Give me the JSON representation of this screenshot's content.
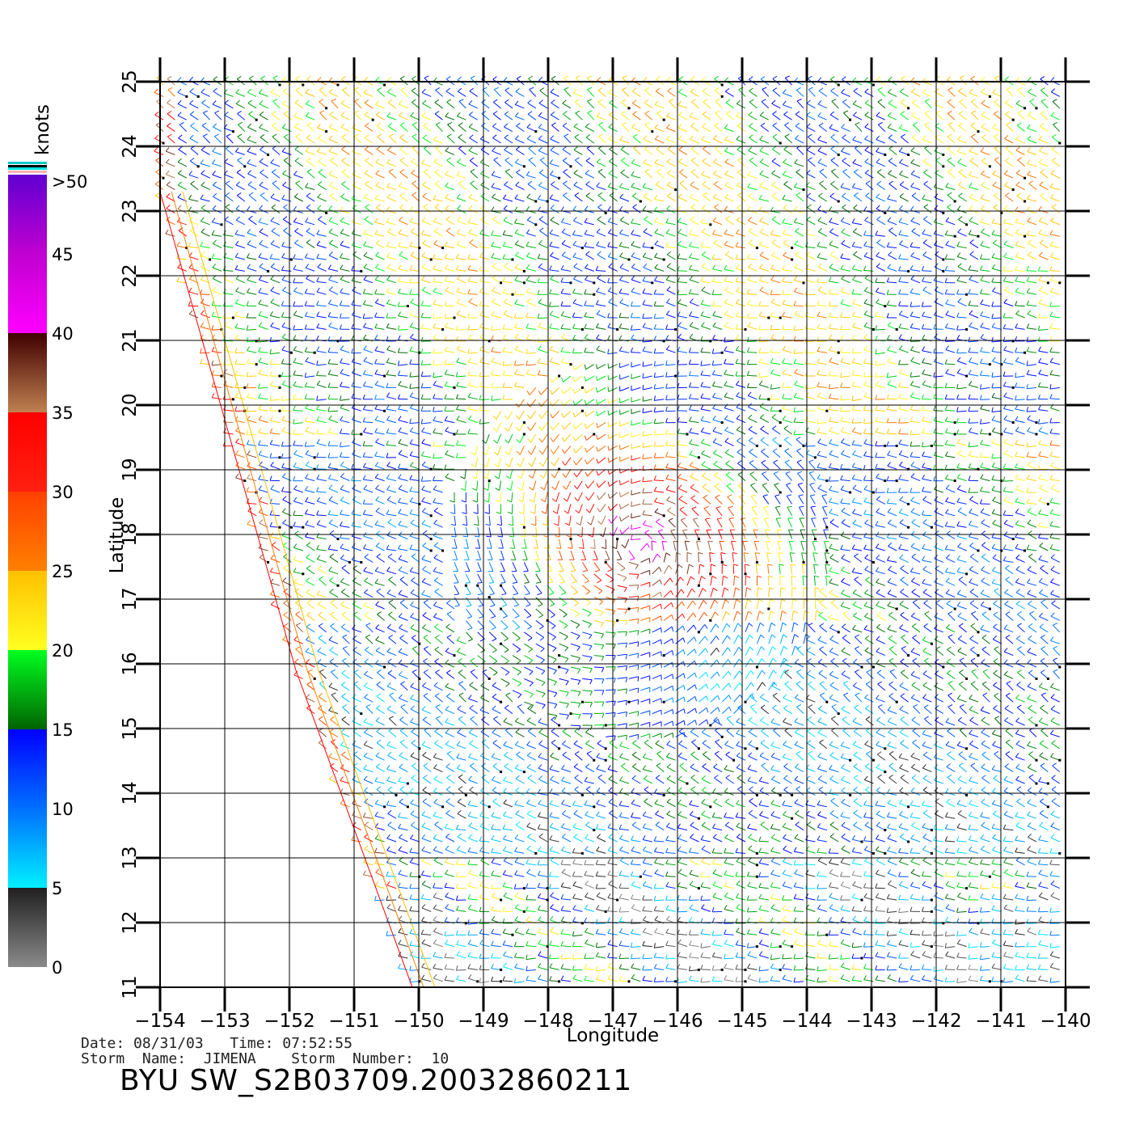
{
  "chart_data": {
    "type": "wind-vector-map",
    "xlabel": "Longitude",
    "ylabel": "Latitude",
    "xlim": [
      -154,
      -140
    ],
    "ylim": [
      11,
      25
    ],
    "x_ticks": [
      "−154",
      "−153",
      "−152",
      "−151",
      "−150",
      "−149",
      "−148",
      "−147",
      "−146",
      "−145",
      "−144",
      "−143",
      "−142",
      "−141",
      "−140"
    ],
    "y_ticks": [
      "11",
      "12",
      "13",
      "14",
      "15",
      "16",
      "17",
      "18",
      "19",
      "20",
      "21",
      "22",
      "23",
      "24",
      "25"
    ],
    "grid": true,
    "swath_west_edge": [
      [
        -154,
        23.3
      ],
      [
        -151.9,
        15.9
      ],
      [
        -150.1,
        11
      ]
    ],
    "storm_center": {
      "lon": -146.6,
      "lat": 17.8
    },
    "colorbar": {
      "unit": "knots",
      "ticks": [
        "0",
        "5",
        "10",
        "15",
        "20",
        "25",
        "30",
        "35",
        "40",
        "45",
        ">50"
      ],
      "stops": [
        {
          "v": 0,
          "color": "#8a8a8a"
        },
        {
          "v": 5,
          "color": "#202020"
        },
        {
          "v": 5.01,
          "color": "#00f0ff"
        },
        {
          "v": 10,
          "color": "#0070ff"
        },
        {
          "v": 15,
          "color": "#0000ff"
        },
        {
          "v": 15.01,
          "color": "#006400"
        },
        {
          "v": 20,
          "color": "#00ff20"
        },
        {
          "v": 20.01,
          "color": "#ffff20"
        },
        {
          "v": 25,
          "color": "#ffc000"
        },
        {
          "v": 25.01,
          "color": "#ff8000"
        },
        {
          "v": 30,
          "color": "#ff4000"
        },
        {
          "v": 30.01,
          "color": "#ff2010"
        },
        {
          "v": 35,
          "color": "#ff0000"
        },
        {
          "v": 35.01,
          "color": "#c08050"
        },
        {
          "v": 40,
          "color": "#400000"
        },
        {
          "v": 40.01,
          "color": "#ff00ff"
        },
        {
          "v": 45,
          "color": "#c000d0"
        },
        {
          "v": 50,
          "color": "#6000d0"
        }
      ]
    }
  },
  "info": {
    "line1": "Date: 08/31/03   Time: 07:52:55",
    "line2": "Storm  Name:  JIMENA    Storm  Number:  10"
  },
  "file_id": "BYU  SW_S2B03709.20032860211"
}
